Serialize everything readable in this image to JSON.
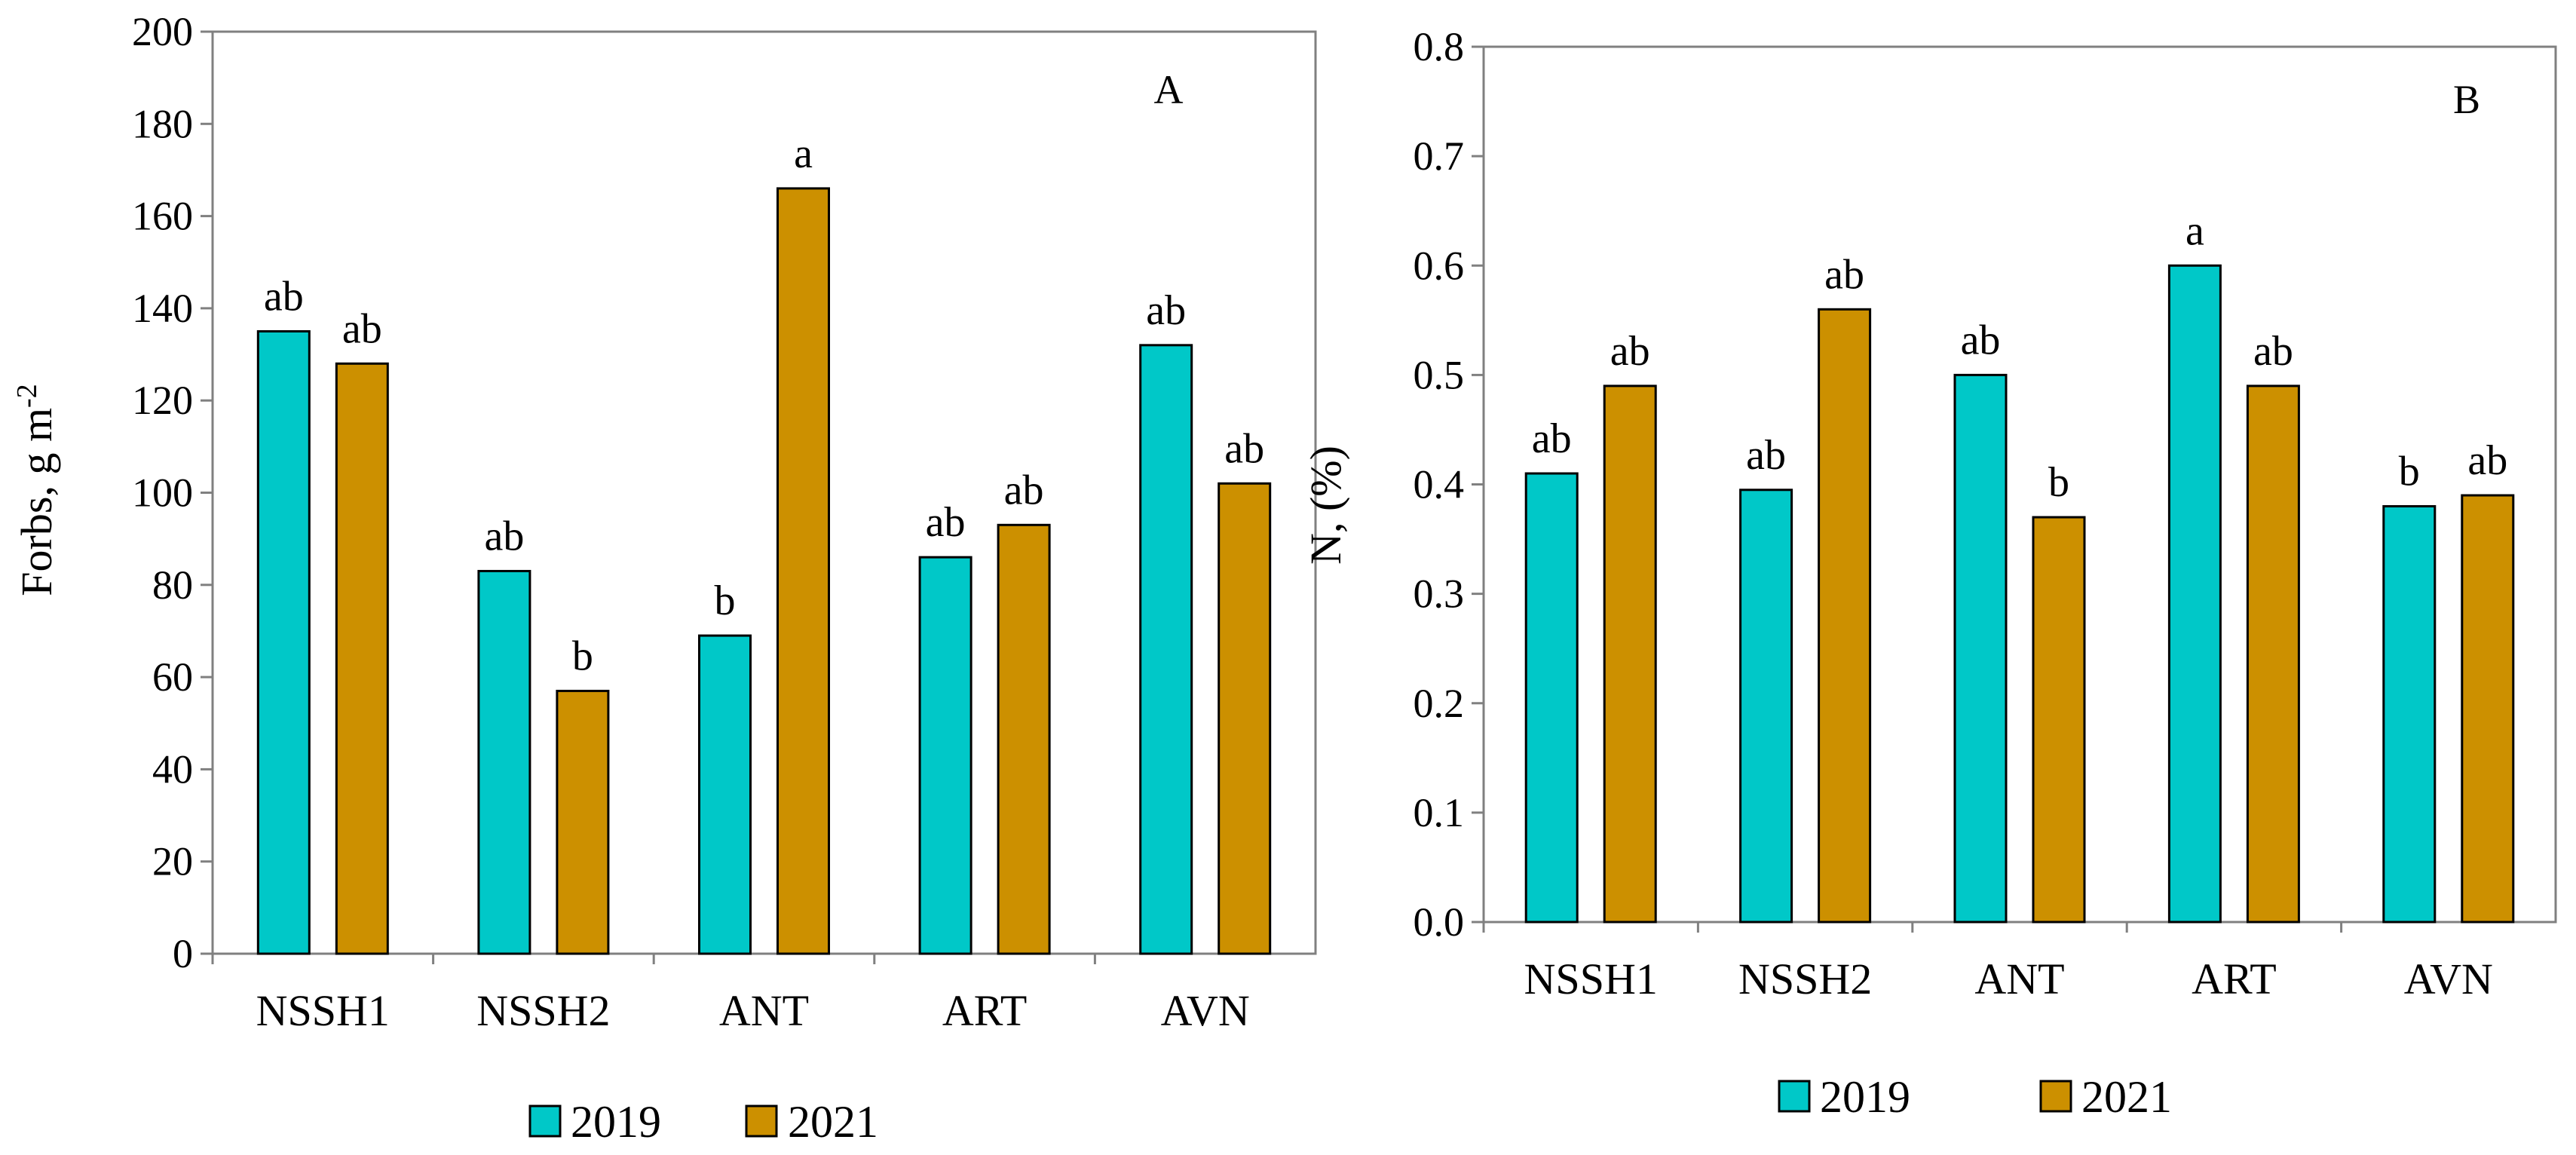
{
  "colors": {
    "series_2019": "#00C8C8",
    "series_2021": "#CC9000",
    "axis": "#808080",
    "bar_stroke": "#000000"
  },
  "legend": {
    "labels": [
      "2019",
      "2021"
    ]
  },
  "chart_data": [
    {
      "type": "bar",
      "panel": "A",
      "ylabel": "Forbs, g m",
      "ylabel_sup": "-2",
      "xlabel": "",
      "ylim": [
        0,
        200
      ],
      "yticks": [
        0,
        20,
        40,
        60,
        80,
        100,
        120,
        140,
        160,
        180,
        200
      ],
      "ytick_labels": [
        "0",
        "20",
        "40",
        "60",
        "80",
        "100",
        "120",
        "140",
        "160",
        "180",
        "200"
      ],
      "categories": [
        "NSSH1",
        "NSSH2",
        "ANT",
        "ART",
        "AVN"
      ],
      "series": [
        {
          "name": "2019",
          "values": [
            135,
            83,
            69,
            86,
            132
          ],
          "letters": [
            "ab",
            "ab",
            "b",
            "ab",
            "ab"
          ]
        },
        {
          "name": "2021",
          "values": [
            128,
            57,
            166,
            93,
            102
          ],
          "letters": [
            "ab",
            "b",
            "a",
            "ab",
            "ab"
          ]
        }
      ],
      "legend": "bottom-center"
    },
    {
      "type": "bar",
      "panel": "B",
      "ylabel": "N,  (%)",
      "xlabel": "",
      "ylim": [
        0,
        0.8
      ],
      "yticks": [
        0,
        0.1,
        0.2,
        0.3,
        0.4,
        0.5,
        0.6,
        0.7,
        0.8
      ],
      "ytick_labels": [
        "0.0",
        "0.1",
        "0.2",
        "0.3",
        "0.4",
        "0.5",
        "0.6",
        "0.7",
        "0.8"
      ],
      "categories": [
        "NSSH1",
        "NSSH2",
        "ANT",
        "ART",
        "AVN"
      ],
      "series": [
        {
          "name": "2019",
          "values": [
            0.41,
            0.395,
            0.5,
            0.6,
            0.38
          ],
          "letters": [
            "ab",
            "ab",
            "ab",
            "a",
            "b"
          ]
        },
        {
          "name": "2021",
          "values": [
            0.49,
            0.56,
            0.37,
            0.49,
            0.39
          ],
          "letters": [
            "ab",
            "ab",
            "b",
            "ab",
            "ab"
          ]
        }
      ],
      "legend": "bottom-center"
    }
  ]
}
